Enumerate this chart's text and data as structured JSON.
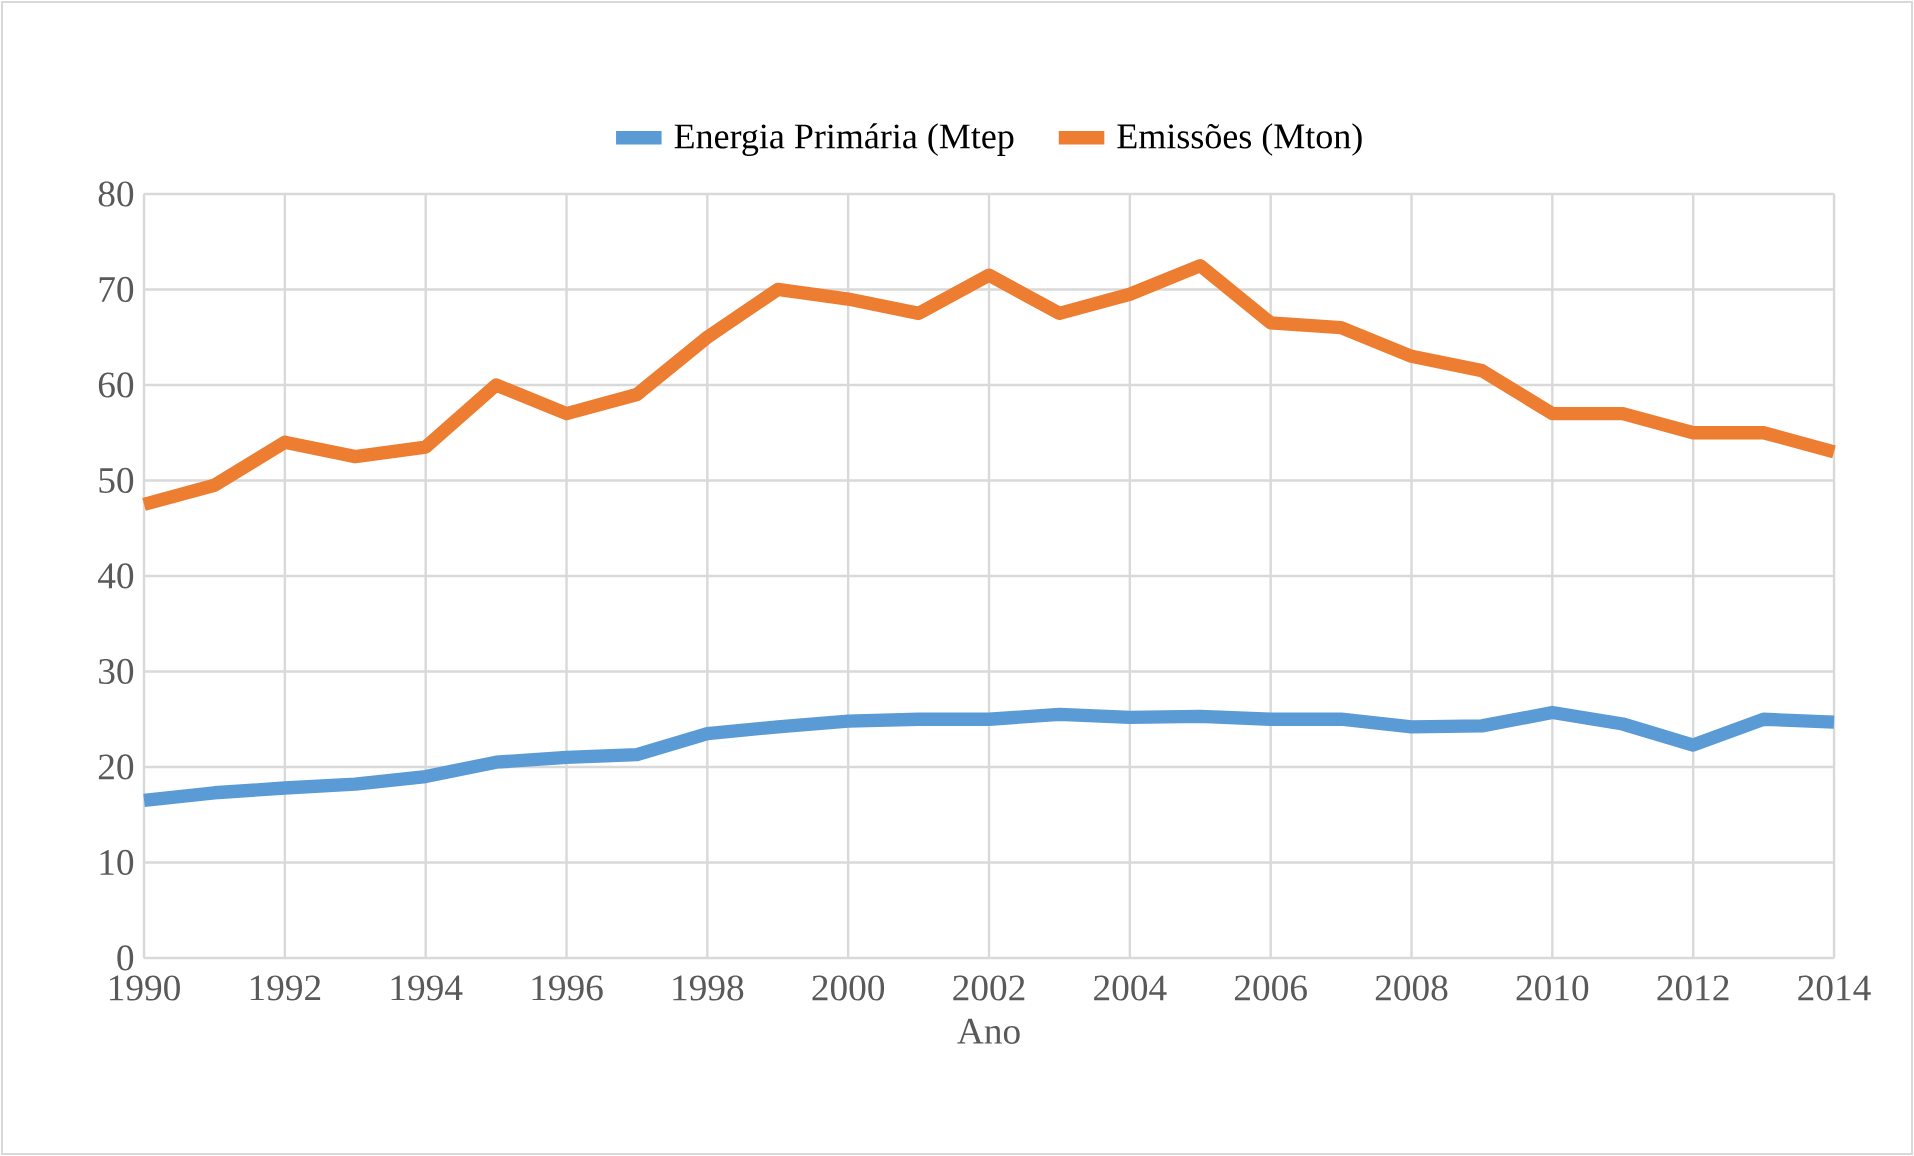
{
  "chart_data": {
    "type": "line",
    "xlabel": "Ano",
    "x": [
      1990,
      1991,
      1992,
      1993,
      1994,
      1995,
      1996,
      1997,
      1998,
      1999,
      2000,
      2001,
      2002,
      2003,
      2004,
      2005,
      2006,
      2007,
      2008,
      2009,
      2010,
      2011,
      2012,
      2013,
      2014
    ],
    "series": [
      {
        "name": "Energia Primária (Mtep",
        "color": "#5b9bd5",
        "values": [
          16.5,
          17.3,
          17.8,
          18.2,
          19,
          20.5,
          21,
          21.3,
          23.5,
          24.2,
          24.8,
          25,
          25,
          25.5,
          25.2,
          25.3,
          25,
          25,
          24.2,
          24.3,
          25.7,
          24.5,
          22.3,
          25,
          24.7
        ]
      },
      {
        "name": "Emissões (Mton)",
        "color": "#ed7d31",
        "values": [
          47.5,
          49.5,
          54,
          52.5,
          53.5,
          60,
          57,
          59,
          65,
          70,
          69,
          67.5,
          71.5,
          67.5,
          69.5,
          72.5,
          66.5,
          66,
          63,
          61.5,
          57,
          57,
          55,
          55,
          53
        ]
      }
    ],
    "xlim": [
      1990,
      2014
    ],
    "xticks": [
      1990,
      1992,
      1994,
      1996,
      1998,
      2000,
      2002,
      2004,
      2006,
      2008,
      2010,
      2012,
      2014
    ],
    "ylim": [
      0,
      80
    ],
    "yticks": [
      0,
      10,
      20,
      30,
      40,
      50,
      60,
      70,
      80
    ],
    "grid": true,
    "legend": "top",
    "marker": "none",
    "line_style": "solid"
  }
}
